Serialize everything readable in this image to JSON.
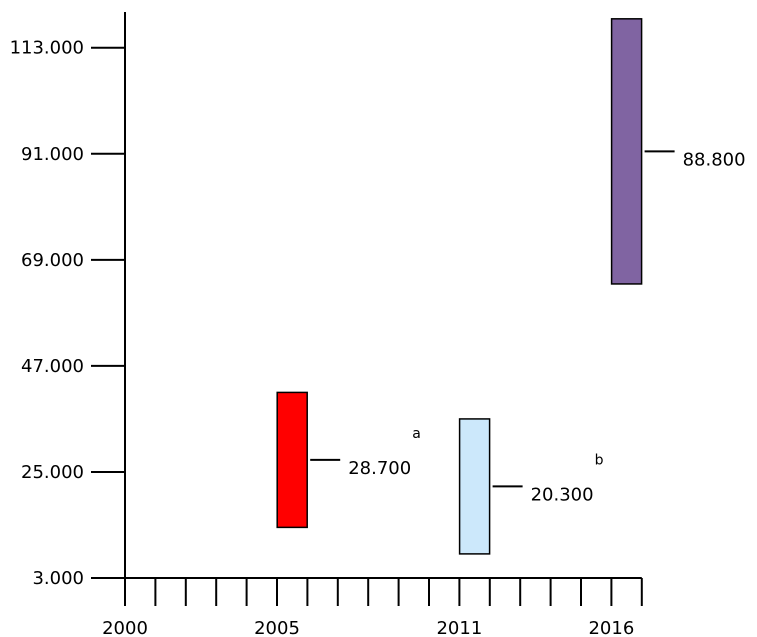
{
  "chart_data": {
    "type": "floating-bar",
    "x_ticks": [
      "2000",
      "2005",
      "2011",
      "2016"
    ],
    "y_ticks": [
      "3.000",
      "25.000",
      "47.000",
      "69.000",
      "91.000",
      "113.000"
    ],
    "ylim": [
      3000,
      120000
    ],
    "xlim": [
      2000,
      2017
    ],
    "grid": false,
    "bars": [
      {
        "x": 2005.5,
        "low": 13500,
        "high": 41500,
        "label": "28.700",
        "color": "#ff0000",
        "note": "a"
      },
      {
        "x": 2011.5,
        "low": 8000,
        "high": 36000,
        "label": "20.300",
        "color": "#cce8fb",
        "note": "b"
      },
      {
        "x": 2016.5,
        "low": 64000,
        "high": 119000,
        "label": "88.800",
        "color": "#8064a2",
        "note": ""
      }
    ]
  }
}
